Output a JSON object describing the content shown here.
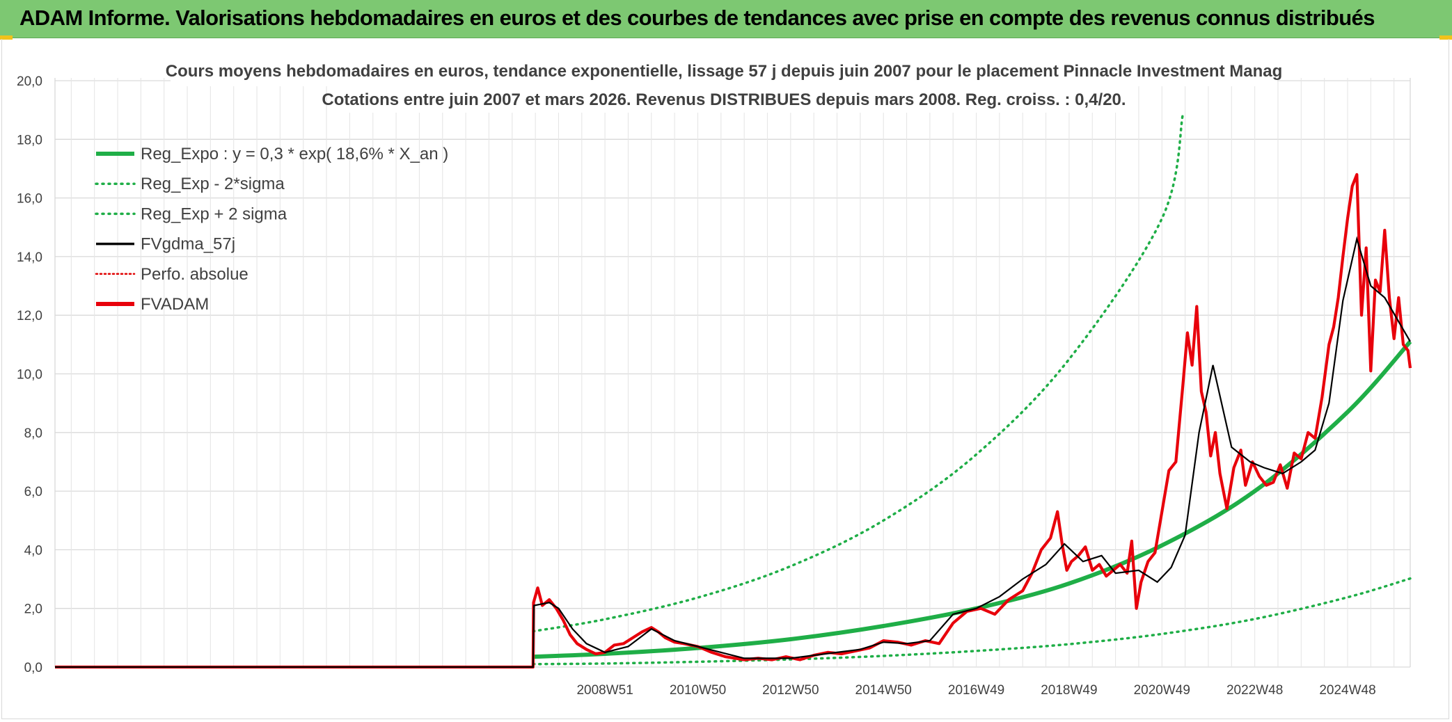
{
  "header": {
    "title": "ADAM Informe. Valorisations hebdomadaires en euros et des courbes de tendances avec prise en compte des revenus connus distribués"
  },
  "colors": {
    "header_bg": "#7dc872",
    "reg_expo": "#1fae47",
    "sigma": "#1fae47",
    "fvgdma": "#000000",
    "perfo": "#e00000",
    "fvadam": "#e8000b",
    "grid": "#d9d9d9"
  },
  "chart_data": {
    "type": "line",
    "title_line1": "Cours moyens hebdomadaires en euros, tendance exponentielle, lissage 57 j depuis juin 2007 pour le placement Pinnacle Investment Manag",
    "title_line2": "Cotations entre juin 2007 et mars 2026. Revenus DISTRIBUES depuis mars 2008. Reg. croiss. : 0,4/20.",
    "ylim": [
      0,
      20
    ],
    "y_ticks": [
      "0,0",
      "2,0",
      "4,0",
      "6,0",
      "8,0",
      "10,0",
      "12,0",
      "14,0",
      "16,0",
      "18,0",
      "20,0"
    ],
    "x_ticks": [
      {
        "label": "2008W51",
        "t": 2009.0
      },
      {
        "label": "2010W50",
        "t": 2011.0
      },
      {
        "label": "2012W50",
        "t": 2013.0
      },
      {
        "label": "2014W50",
        "t": 2015.0
      },
      {
        "label": "2016W49",
        "t": 2017.0
      },
      {
        "label": "2018W49",
        "t": 2019.0
      },
      {
        "label": "2020W49",
        "t": 2021.0
      },
      {
        "label": "2022W48",
        "t": 2023.0
      },
      {
        "label": "2024W48",
        "t": 2025.0
      }
    ],
    "x_range": [
      1997.15,
      2026.35
    ],
    "legend": [
      {
        "name": "Reg_Expo : y = 0,3 * exp( 18,6% *  X_an )",
        "style": "thick-solid",
        "color": "#1fae47"
      },
      {
        "name": "Reg_Exp - 2*sigma",
        "style": "dotted",
        "color": "#1fae47"
      },
      {
        "name": "Reg_Exp + 2 sigma",
        "style": "dotted",
        "color": "#1fae47"
      },
      {
        "name": "FVgdma_57j",
        "style": "solid",
        "color": "#000000"
      },
      {
        "name": "Perfo. absolue",
        "style": "dotted",
        "color": "#e00000"
      },
      {
        "name": "FVADAM",
        "style": "thick-solid",
        "color": "#e8000b"
      }
    ],
    "series": [
      {
        "name": "Reg_Expo : y = 0,3 * exp( 18,6% *  X_an )",
        "x": [
          2007.45,
          2009.0,
          2011.0,
          2013.0,
          2015.0,
          2017.0,
          2019.0,
          2021.0,
          2023.0,
          2025.0,
          2026.35
        ],
        "y": [
          0.35,
          0.45,
          0.65,
          0.95,
          1.4,
          2.0,
          2.85,
          4.15,
          6.0,
          8.7,
          11.1
        ]
      },
      {
        "name": "Reg_Exp - 2*sigma",
        "x": [
          2007.45,
          2009.0,
          2011.0,
          2013.0,
          2015.0,
          2017.0,
          2019.0,
          2021.0,
          2023.0,
          2025.0,
          2026.35
        ],
        "y": [
          0.1,
          0.12,
          0.18,
          0.26,
          0.38,
          0.55,
          0.78,
          1.13,
          1.64,
          2.38,
          3.02
        ]
      },
      {
        "name": "Reg_Exp + 2 sigma",
        "x": [
          2007.45,
          2009.0,
          2011.0,
          2013.0,
          2015.0,
          2017.0,
          2019.0,
          2021.0,
          2021.45
        ],
        "y": [
          1.22,
          1.63,
          2.37,
          3.44,
          5.0,
          7.25,
          10.5,
          15.3,
          18.85
        ]
      },
      {
        "name": "FVgdma_57j",
        "x": [
          1997.15,
          2007.45,
          2007.47,
          2007.8,
          2008.0,
          2008.3,
          2008.6,
          2009.0,
          2009.5,
          2010.0,
          2010.5,
          2011.0,
          2011.5,
          2012.0,
          2012.5,
          2013.0,
          2013.5,
          2014.0,
          2014.5,
          2015.0,
          2015.5,
          2016.0,
          2016.5,
          2017.0,
          2017.5,
          2018.0,
          2018.5,
          2018.9,
          2019.3,
          2019.7,
          2020.0,
          2020.5,
          2020.9,
          2021.2,
          2021.5,
          2021.8,
          2022.1,
          2022.5,
          2022.9,
          2023.2,
          2023.6,
          2024.0,
          2024.3,
          2024.6,
          2024.9,
          2025.2,
          2025.5,
          2025.8,
          2026.35
        ],
        "y": [
          0,
          0,
          2.1,
          2.2,
          2.0,
          1.3,
          0.8,
          0.5,
          0.7,
          1.3,
          0.9,
          0.7,
          0.5,
          0.3,
          0.3,
          0.3,
          0.4,
          0.5,
          0.6,
          0.85,
          0.8,
          0.9,
          1.8,
          2.0,
          2.4,
          3.0,
          3.5,
          4.2,
          3.6,
          3.8,
          3.2,
          3.3,
          2.9,
          3.4,
          4.5,
          8.0,
          10.3,
          7.5,
          7.0,
          6.8,
          6.6,
          7.0,
          7.4,
          9.0,
          12.5,
          14.6,
          13.0,
          12.6,
          11.1
        ]
      },
      {
        "name": "Perfo. absolue",
        "x": [
          1997.15,
          2007.45
        ],
        "y": [
          0,
          0
        ]
      },
      {
        "name": "FVADAM",
        "x": [
          1997.15,
          2007.45,
          2007.46,
          2007.55,
          2007.65,
          2007.8,
          2007.95,
          2008.1,
          2008.25,
          2008.4,
          2008.6,
          2008.8,
          2009.0,
          2009.2,
          2009.4,
          2009.6,
          2009.8,
          2010.0,
          2010.15,
          2010.3,
          2010.5,
          2010.7,
          2011.0,
          2011.3,
          2011.6,
          2012.0,
          2012.3,
          2012.6,
          2012.9,
          2013.2,
          2013.5,
          2013.8,
          2014.1,
          2014.4,
          2014.7,
          2015.0,
          2015.3,
          2015.6,
          2015.9,
          2016.2,
          2016.5,
          2016.8,
          2017.1,
          2017.4,
          2017.7,
          2018.0,
          2018.2,
          2018.4,
          2018.6,
          2018.75,
          2018.85,
          2018.95,
          2019.05,
          2019.2,
          2019.35,
          2019.5,
          2019.65,
          2019.8,
          2019.95,
          2020.1,
          2020.25,
          2020.35,
          2020.45,
          2020.55,
          2020.7,
          2020.85,
          2021.0,
          2021.15,
          2021.3,
          2021.45,
          2021.55,
          2021.65,
          2021.75,
          2021.85,
          2021.95,
          2022.05,
          2022.15,
          2022.25,
          2022.4,
          2022.55,
          2022.7,
          2022.8,
          2022.95,
          2023.1,
          2023.25,
          2023.4,
          2023.55,
          2023.7,
          2023.85,
          2024.0,
          2024.15,
          2024.3,
          2024.45,
          2024.6,
          2024.7,
          2024.8,
          2024.9,
          2025.0,
          2025.1,
          2025.2,
          2025.3,
          2025.4,
          2025.5,
          2025.6,
          2025.7,
          2025.8,
          2025.9,
          2026.0,
          2026.1,
          2026.2,
          2026.3,
          2026.35
        ],
        "y": [
          0,
          0,
          2.2,
          2.7,
          2.1,
          2.3,
          2.0,
          1.6,
          1.1,
          0.8,
          0.6,
          0.45,
          0.5,
          0.75,
          0.8,
          1.0,
          1.2,
          1.35,
          1.2,
          1.0,
          0.85,
          0.8,
          0.7,
          0.5,
          0.35,
          0.25,
          0.3,
          0.25,
          0.35,
          0.25,
          0.4,
          0.5,
          0.45,
          0.55,
          0.65,
          0.9,
          0.85,
          0.75,
          0.9,
          0.8,
          1.5,
          1.9,
          2.0,
          1.8,
          2.3,
          2.6,
          3.2,
          4.0,
          4.4,
          5.3,
          4.2,
          3.3,
          3.6,
          3.8,
          4.1,
          3.3,
          3.5,
          3.1,
          3.3,
          3.5,
          3.2,
          4.3,
          2.0,
          2.9,
          3.6,
          3.9,
          5.3,
          6.7,
          7.0,
          9.6,
          11.4,
          10.3,
          12.3,
          9.4,
          8.7,
          7.2,
          8.0,
          6.6,
          5.4,
          6.8,
          7.4,
          6.2,
          7.0,
          6.5,
          6.2,
          6.3,
          6.9,
          6.1,
          7.3,
          7.1,
          8.0,
          7.8,
          9.2,
          11.0,
          11.6,
          12.6,
          14.0,
          15.3,
          16.4,
          16.8,
          12.0,
          14.3,
          10.1,
          13.2,
          12.8,
          14.9,
          12.6,
          11.2,
          12.6,
          11.0,
          10.8,
          10.2
        ]
      }
    ]
  }
}
